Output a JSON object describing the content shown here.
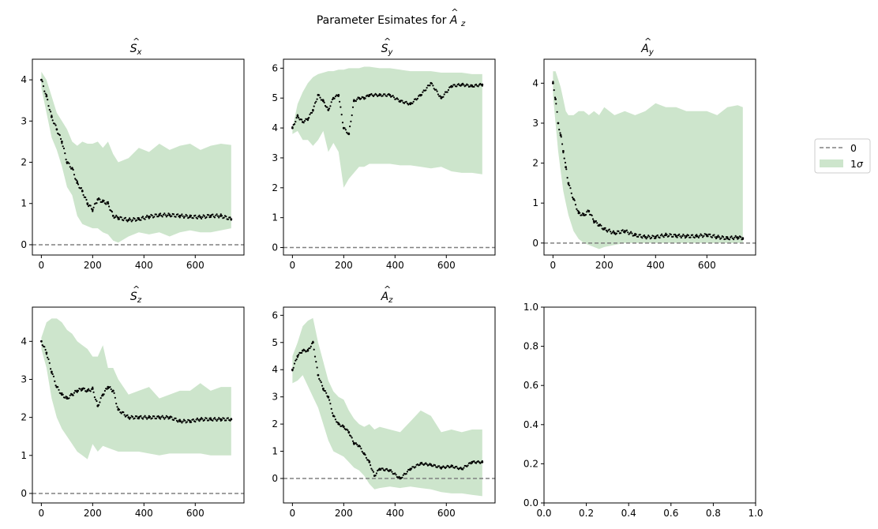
{
  "figure": {
    "suptitle_prefix": "Parameter Esimates for ",
    "suptitle_math_base": "A",
    "suptitle_math_sub": "z"
  },
  "legend": {
    "entries": [
      {
        "label": "0",
        "kind": "dashed-line",
        "color": "#808080"
      },
      {
        "label_base": "1",
        "label_math": "σ",
        "kind": "patch",
        "color": "#cde5cc"
      }
    ]
  },
  "colors": {
    "band": "#cde5cc",
    "points": "#000000",
    "zero_line": "#808080"
  },
  "chart_data": [
    {
      "type": "line",
      "title_base": "S",
      "title_sub": "x",
      "title_hat": true,
      "xlim": [
        -35,
        790
      ],
      "ylim": [
        -0.25,
        4.5
      ],
      "xticks": [
        0,
        200,
        400,
        600
      ],
      "yticks": [
        0,
        1,
        2,
        3,
        4
      ],
      "zero_line": 0,
      "estimate": {
        "x": [
          0,
          20,
          40,
          60,
          80,
          100,
          120,
          140,
          160,
          180,
          200,
          220,
          240,
          260,
          280,
          300,
          340,
          380,
          420,
          460,
          500,
          540,
          580,
          620,
          660,
          700,
          740
        ],
        "y": [
          4.0,
          3.6,
          3.1,
          2.8,
          2.5,
          2.0,
          1.85,
          1.5,
          1.3,
          1.0,
          0.85,
          1.1,
          1.05,
          1.0,
          0.7,
          0.65,
          0.6,
          0.62,
          0.68,
          0.72,
          0.72,
          0.7,
          0.68,
          0.67,
          0.7,
          0.7,
          0.62
        ]
      },
      "band_upper": [
        4.2,
        4.0,
        3.6,
        3.2,
        3.0,
        2.8,
        2.5,
        2.4,
        2.5,
        2.45,
        2.45,
        2.5,
        2.35,
        2.5,
        2.2,
        2.0,
        2.1,
        2.35,
        2.25,
        2.45,
        2.3,
        2.4,
        2.45,
        2.3,
        2.4,
        2.45,
        2.42
      ],
      "band_lower": [
        3.8,
        3.2,
        2.6,
        2.3,
        1.9,
        1.4,
        1.2,
        0.7,
        0.5,
        0.45,
        0.4,
        0.4,
        0.3,
        0.25,
        0.1,
        0.05,
        0.2,
        0.3,
        0.25,
        0.3,
        0.2,
        0.3,
        0.35,
        0.3,
        0.3,
        0.35,
        0.4
      ]
    },
    {
      "type": "line",
      "title_base": "S",
      "title_sub": "y",
      "title_hat": true,
      "xlim": [
        -35,
        790
      ],
      "ylim": [
        -0.25,
        6.3
      ],
      "xticks": [
        0,
        200,
        400,
        600
      ],
      "yticks": [
        0,
        1,
        2,
        3,
        4,
        5,
        6
      ],
      "zero_line": 0,
      "estimate": {
        "x": [
          0,
          20,
          40,
          60,
          80,
          100,
          120,
          140,
          160,
          180,
          200,
          220,
          240,
          260,
          280,
          300,
          340,
          380,
          420,
          460,
          500,
          540,
          580,
          620,
          660,
          700,
          740
        ],
        "y": [
          4.0,
          4.4,
          4.2,
          4.3,
          4.6,
          5.1,
          4.9,
          4.6,
          5.0,
          5.1,
          4.0,
          3.8,
          4.9,
          5.0,
          5.0,
          5.1,
          5.1,
          5.1,
          4.9,
          4.8,
          5.1,
          5.5,
          5.0,
          5.4,
          5.45,
          5.4,
          5.45
        ]
      },
      "band_upper": [
        4.0,
        4.8,
        5.2,
        5.5,
        5.7,
        5.8,
        5.85,
        5.9,
        5.9,
        5.95,
        5.95,
        6.0,
        6.0,
        6.0,
        6.05,
        6.05,
        6.0,
        6.0,
        5.95,
        5.9,
        5.9,
        5.9,
        5.85,
        5.85,
        5.85,
        5.8,
        5.8
      ],
      "band_lower": [
        3.8,
        3.9,
        3.6,
        3.6,
        3.4,
        3.6,
        3.9,
        3.2,
        3.5,
        3.2,
        2.0,
        2.3,
        2.5,
        2.7,
        2.7,
        2.8,
        2.8,
        2.8,
        2.75,
        2.75,
        2.7,
        2.65,
        2.7,
        2.55,
        2.5,
        2.5,
        2.45
      ]
    },
    {
      "type": "line",
      "title_base": "A",
      "title_sub": "y",
      "title_hat": true,
      "xlim": [
        -35,
        790
      ],
      "ylim": [
        -0.3,
        4.6
      ],
      "xticks": [
        0,
        200,
        400,
        600
      ],
      "yticks": [
        0,
        1,
        2,
        3,
        4
      ],
      "zero_line": 0,
      "estimate": {
        "x": [
          0,
          10,
          20,
          30,
          40,
          50,
          60,
          80,
          100,
          120,
          140,
          160,
          180,
          200,
          240,
          280,
          320,
          360,
          400,
          440,
          480,
          520,
          560,
          600,
          640,
          680,
          720,
          740
        ],
        "y": [
          4.0,
          3.6,
          3.0,
          2.7,
          2.3,
          1.9,
          1.5,
          1.1,
          0.75,
          0.7,
          0.8,
          0.55,
          0.45,
          0.35,
          0.25,
          0.3,
          0.2,
          0.15,
          0.15,
          0.2,
          0.18,
          0.17,
          0.17,
          0.2,
          0.15,
          0.12,
          0.14,
          0.12
        ]
      },
      "band_upper": [
        4.3,
        4.3,
        4.1,
        3.9,
        3.6,
        3.3,
        3.2,
        3.2,
        3.3,
        3.3,
        3.2,
        3.3,
        3.2,
        3.4,
        3.2,
        3.3,
        3.2,
        3.3,
        3.5,
        3.4,
        3.4,
        3.3,
        3.3,
        3.3,
        3.2,
        3.4,
        3.45,
        3.4
      ],
      "band_lower": [
        3.7,
        3.0,
        2.3,
        1.8,
        1.3,
        1.0,
        0.7,
        0.3,
        0.1,
        0.0,
        -0.05,
        -0.1,
        -0.15,
        -0.1,
        -0.05,
        0.0,
        0.0,
        0.0,
        0.0,
        0.0,
        0.0,
        0.0,
        0.0,
        0.0,
        0.0,
        0.0,
        0.0,
        0.0
      ]
    },
    {
      "type": "line",
      "title_base": "S",
      "title_sub": "z",
      "title_hat": true,
      "xlim": [
        -35,
        790
      ],
      "ylim": [
        -0.25,
        4.9
      ],
      "xticks": [
        0,
        200,
        400,
        600
      ],
      "yticks": [
        0,
        1,
        2,
        3,
        4
      ],
      "zero_line": 0,
      "estimate": {
        "x": [
          0,
          20,
          40,
          60,
          80,
          100,
          120,
          140,
          160,
          180,
          200,
          220,
          240,
          260,
          280,
          300,
          340,
          380,
          420,
          460,
          500,
          540,
          580,
          620,
          660,
          700,
          740
        ],
        "y": [
          4.0,
          3.7,
          3.2,
          2.8,
          2.6,
          2.5,
          2.6,
          2.7,
          2.75,
          2.7,
          2.75,
          2.3,
          2.6,
          2.8,
          2.7,
          2.2,
          2.0,
          2.0,
          2.0,
          2.0,
          2.0,
          1.9,
          1.9,
          1.95,
          1.95,
          1.95,
          1.95
        ]
      },
      "band_upper": [
        4.1,
        4.5,
        4.6,
        4.6,
        4.5,
        4.3,
        4.2,
        4.0,
        3.9,
        3.8,
        3.6,
        3.6,
        3.9,
        3.3,
        3.3,
        3.0,
        2.6,
        2.7,
        2.8,
        2.5,
        2.6,
        2.7,
        2.7,
        2.9,
        2.7,
        2.8,
        2.8
      ],
      "band_lower": [
        3.8,
        3.3,
        2.5,
        2.0,
        1.7,
        1.5,
        1.3,
        1.1,
        1.0,
        0.9,
        1.3,
        1.1,
        1.25,
        1.2,
        1.15,
        1.1,
        1.1,
        1.1,
        1.05,
        1.0,
        1.05,
        1.05,
        1.05,
        1.05,
        1.0,
        1.0,
        1.0
      ]
    },
    {
      "type": "line",
      "title_base": "A",
      "title_sub": "z",
      "title_hat": true,
      "xlim": [
        -35,
        790
      ],
      "ylim": [
        -0.9,
        6.3
      ],
      "xticks": [
        0,
        200,
        400,
        600
      ],
      "yticks": [
        0,
        1,
        2,
        3,
        4,
        5,
        6
      ],
      "zero_line": 0,
      "estimate": {
        "x": [
          0,
          20,
          40,
          60,
          80,
          100,
          120,
          140,
          160,
          180,
          200,
          220,
          240,
          260,
          280,
          300,
          320,
          340,
          380,
          420,
          460,
          500,
          540,
          580,
          620,
          660,
          700,
          740
        ],
        "y": [
          4.0,
          4.5,
          4.7,
          4.7,
          5.0,
          3.8,
          3.3,
          3.0,
          2.3,
          2.0,
          1.9,
          1.7,
          1.3,
          1.2,
          0.9,
          0.6,
          0.1,
          0.35,
          0.3,
          0.0,
          0.35,
          0.55,
          0.5,
          0.4,
          0.45,
          0.35,
          0.6,
          0.6
        ]
      },
      "band_upper": [
        4.5,
        5.0,
        5.6,
        5.8,
        5.9,
        5.0,
        4.3,
        3.6,
        3.2,
        3.0,
        2.9,
        2.5,
        2.2,
        2.0,
        1.9,
        2.0,
        1.8,
        1.9,
        1.8,
        1.7,
        2.1,
        2.5,
        2.3,
        1.7,
        1.8,
        1.7,
        1.8,
        1.8
      ],
      "band_lower": [
        3.5,
        3.6,
        3.8,
        3.4,
        3.0,
        2.6,
        2.0,
        1.4,
        1.0,
        0.9,
        0.8,
        0.6,
        0.4,
        0.3,
        0.1,
        -0.2,
        -0.4,
        -0.35,
        -0.3,
        -0.35,
        -0.3,
        -0.35,
        -0.4,
        -0.5,
        -0.55,
        -0.55,
        -0.6,
        -0.65
      ]
    },
    {
      "type": "line",
      "title_base": "",
      "title_sub": "",
      "title_hat": false,
      "xlim": [
        0,
        1
      ],
      "ylim": [
        0,
        1
      ],
      "xticks": [
        0.0,
        0.2,
        0.4,
        0.6,
        0.8,
        1.0
      ],
      "yticks": [
        0.0,
        0.2,
        0.4,
        0.6,
        0.8,
        1.0
      ],
      "tick_format": "one_decimal",
      "empty": true
    }
  ]
}
